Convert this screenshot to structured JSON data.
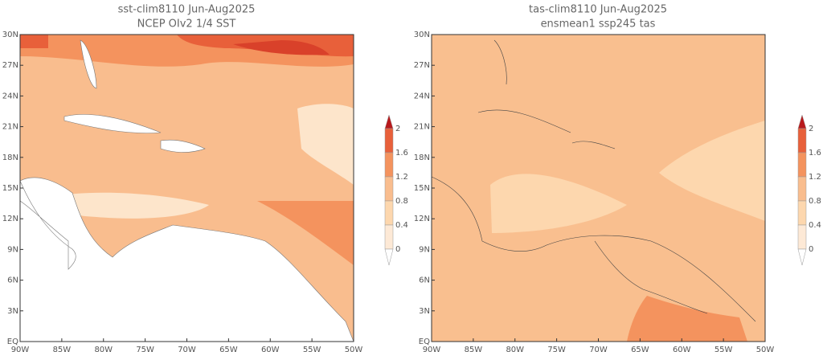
{
  "panels": [
    {
      "title": "sst-clim8110 Jun-Aug2025",
      "subtitle": "NCEP OIv2 1/4 SST",
      "lat_labels": [
        "30N",
        "27N",
        "24N",
        "21N",
        "18N",
        "15N",
        "12N",
        "9N",
        "6N",
        "3N",
        "EQ"
      ],
      "lon_labels": [
        "90W",
        "85W",
        "80W",
        "75W",
        "70W",
        "65W",
        "60W",
        "55W",
        "50W"
      ],
      "colorbar_labels": [
        "2",
        "1.6",
        "1.2",
        "0.8",
        "0.4",
        "0"
      ]
    },
    {
      "title": "tas-clim8110 Jun-Aug2025",
      "subtitle": "ensmean1 ssp245 tas",
      "lat_labels": [
        "30N",
        "27N",
        "24N",
        "21N",
        "18N",
        "15N",
        "12N",
        "9N",
        "6N",
        "3N",
        "EQ"
      ],
      "lon_labels": [
        "90W",
        "85W",
        "80W",
        "75W",
        "70W",
        "65W",
        "60W",
        "55W",
        "50W"
      ],
      "colorbar_labels": [
        "2",
        "1.6",
        "1.2",
        "0.8",
        "0.4",
        "0"
      ]
    }
  ]
}
